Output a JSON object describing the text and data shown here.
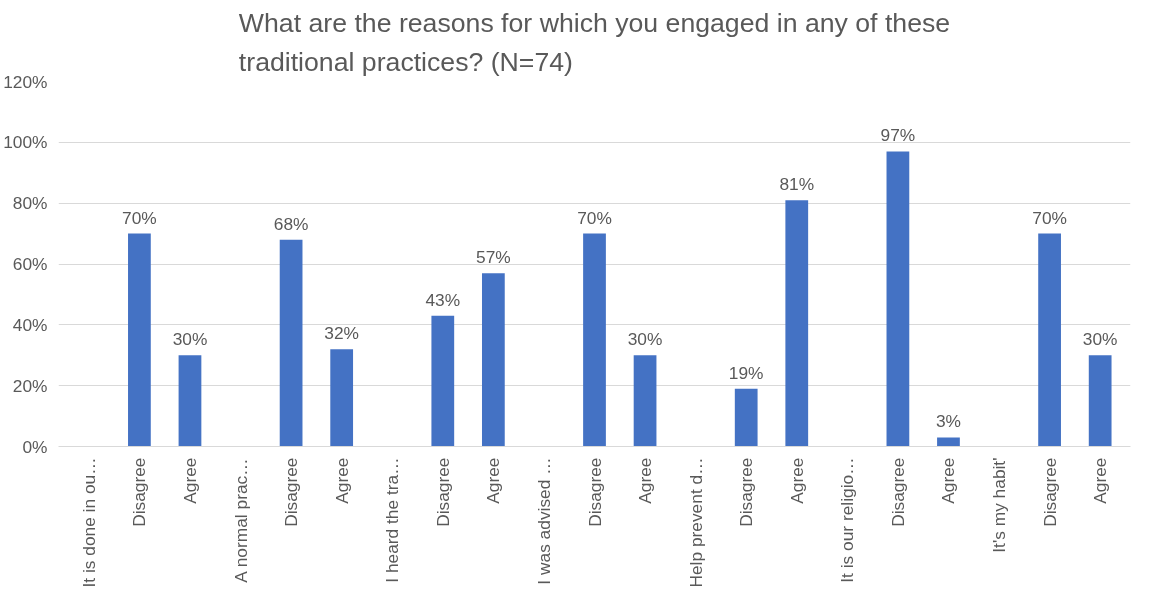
{
  "chart_data": {
    "type": "bar",
    "title": "What are the reasons for which you engaged in any of these\ntraditional practices? (N=74)",
    "categories": [
      "It is done in ou…",
      "Disagree",
      "Agree",
      "A normal prac…",
      "Disagree",
      "Agree",
      "I heard the tra…",
      "Disagree",
      "Agree",
      "I was advised …",
      "Disagree",
      "Agree",
      "Help prevent d…",
      "Disagree",
      "Agree",
      "It is our religio…",
      "Disagree",
      "Agree",
      "It's my habit'",
      "Disagree",
      "Agree"
    ],
    "values": [
      null,
      70,
      30,
      null,
      68,
      32,
      null,
      43,
      57,
      null,
      70,
      30,
      null,
      19,
      81,
      null,
      97,
      3,
      null,
      70,
      30
    ],
    "value_labels": [
      null,
      "70%",
      "30%",
      null,
      "68%",
      "32%",
      null,
      "43%",
      "57%",
      null,
      "70%",
      "30%",
      null,
      "19%",
      "81%",
      null,
      "97%",
      "3%",
      null,
      "70%",
      "30%"
    ],
    "color": "#4472c4",
    "ylim": [
      0,
      120
    ],
    "yticks": [
      {
        "value": 0,
        "label": "0%"
      },
      {
        "value": 20,
        "label": "20%"
      },
      {
        "value": 40,
        "label": "40%"
      },
      {
        "value": 60,
        "label": "60%"
      },
      {
        "value": 80,
        "label": "80%"
      },
      {
        "value": 100,
        "label": "100%"
      },
      {
        "value": 120,
        "label": "120%"
      }
    ],
    "grid": "y"
  }
}
